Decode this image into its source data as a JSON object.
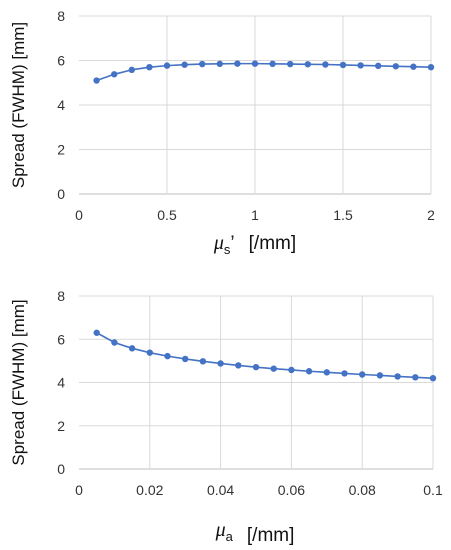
{
  "chart_data": [
    {
      "type": "line",
      "ylabel": "Spread (FWHM) [mm]",
      "xlabel": {
        "symbol": "μ",
        "subscript": "s",
        "suffix": "’",
        "unit": "[/mm]"
      },
      "xlim": [
        0,
        2
      ],
      "ylim": [
        0,
        8
      ],
      "xticks": [
        "0",
        "0.5",
        "1",
        "1.5",
        "2"
      ],
      "yticks": [
        "0",
        "2",
        "4",
        "6",
        "8"
      ],
      "grid": true,
      "color": "#4472C4",
      "series": [
        {
          "x": [
            0.1,
            0.2,
            0.3,
            0.4,
            0.5,
            0.6,
            0.7,
            0.8,
            0.9,
            1.0,
            1.1,
            1.2,
            1.3,
            1.4,
            1.5,
            1.6,
            1.7,
            1.8,
            1.9,
            2.0
          ],
          "y": [
            5.1,
            5.38,
            5.58,
            5.7,
            5.77,
            5.81,
            5.84,
            5.85,
            5.86,
            5.86,
            5.85,
            5.84,
            5.83,
            5.82,
            5.8,
            5.78,
            5.76,
            5.74,
            5.72,
            5.7
          ]
        }
      ]
    },
    {
      "type": "line",
      "ylabel": "Spread (FWHM) [mm]",
      "xlabel": {
        "symbol": "μ",
        "subscript": "a",
        "suffix": "",
        "unit": "[/mm]"
      },
      "xlim": [
        0,
        0.1
      ],
      "ylim": [
        0,
        8
      ],
      "xticks": [
        "0",
        "0.02",
        "0.04",
        "0.06",
        "0.08",
        "0.1"
      ],
      "yticks": [
        "0",
        "2",
        "4",
        "6",
        "8"
      ],
      "grid": true,
      "color": "#4472C4",
      "series": [
        {
          "x": [
            0.005,
            0.01,
            0.015,
            0.02,
            0.025,
            0.03,
            0.035,
            0.04,
            0.045,
            0.05,
            0.055,
            0.06,
            0.065,
            0.07,
            0.075,
            0.08,
            0.085,
            0.09,
            0.095,
            0.1
          ],
          "y": [
            6.3,
            5.85,
            5.58,
            5.38,
            5.22,
            5.09,
            4.98,
            4.88,
            4.79,
            4.71,
            4.64,
            4.58,
            4.52,
            4.47,
            4.42,
            4.37,
            4.33,
            4.28,
            4.24,
            4.2
          ]
        }
      ]
    }
  ]
}
